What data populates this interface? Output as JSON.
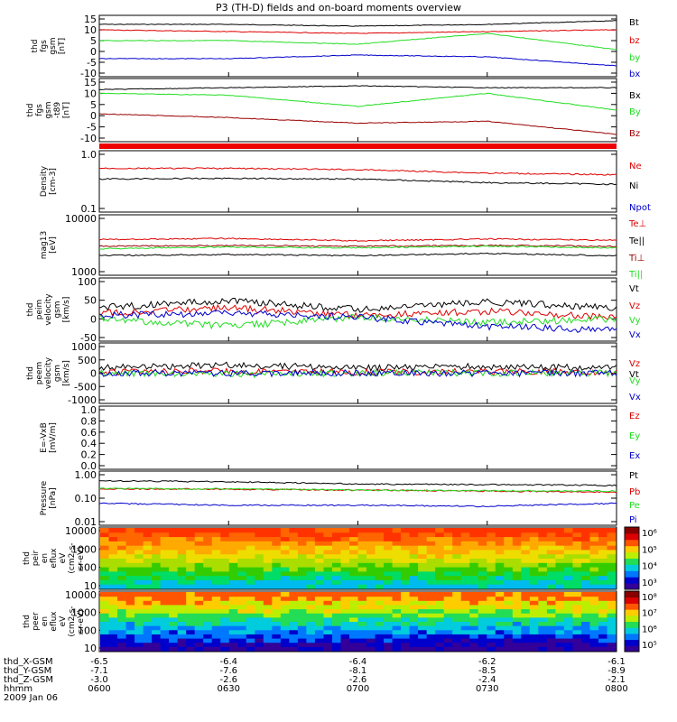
{
  "title": "P3 (TH-D) fields and on-board moments overview",
  "colors": {
    "black": "#000000",
    "red": "#dd0000",
    "green": "#22dd22",
    "blue": "#0000cc",
    "brown": "#990000",
    "purple": "#9900aa"
  },
  "chart_data": [
    {
      "type": "line",
      "id": "fgs_gsm",
      "ylabel_lines": [
        "thd",
        "fgs",
        "gsm",
        "[nT]"
      ],
      "ylim": [
        -15,
        15
      ],
      "yticks": [
        "15",
        "10",
        "5",
        "0",
        "-5",
        "-10"
      ],
      "series": [
        {
          "name": "Bt",
          "color": "red-black",
          "label": "Bt",
          "x": [
            "0600",
            "0630",
            "0700",
            "0730",
            "0800"
          ],
          "values": [
            12,
            12,
            11,
            12,
            14
          ]
        },
        {
          "name": "bz",
          "label": "bz",
          "x": [
            "0600",
            "0630",
            "0700",
            "0730",
            "0800"
          ],
          "values": [
            9,
            8,
            7,
            8,
            9
          ]
        },
        {
          "name": "by",
          "label": "by",
          "x": [
            "0600",
            "0630",
            "0700",
            "0730",
            "0800"
          ],
          "values": [
            3,
            3,
            1,
            7,
            -2
          ]
        },
        {
          "name": "bx",
          "label": "bx",
          "x": [
            "0600",
            "0630",
            "0700",
            "0730",
            "0800"
          ],
          "values": [
            -7,
            -7,
            -5,
            -6,
            -11
          ]
        }
      ]
    },
    {
      "type": "line",
      "id": "fgs_gsm_t89",
      "ylabel_lines": [
        "thd",
        "fgs",
        "gsm",
        "-t89",
        "[nT]"
      ],
      "ylim": [
        -15,
        15
      ],
      "yticks": [
        "15",
        "10",
        "5",
        "0",
        "-5",
        "-10"
      ],
      "series": [
        {
          "name": "Bx",
          "label": "Bx",
          "x": [
            "0600",
            "0630",
            "0700",
            "0730",
            "0800"
          ],
          "values": [
            11,
            12,
            13,
            12,
            12
          ]
        },
        {
          "name": "By",
          "label": "By",
          "x": [
            "0600",
            "0630",
            "0700",
            "0730",
            "0800"
          ],
          "values": [
            9,
            8,
            2,
            9,
            0
          ]
        },
        {
          "name": "Bz",
          "label": "Bz",
          "x": [
            "0600",
            "0630",
            "0700",
            "0730",
            "0800"
          ],
          "values": [
            -2,
            -4,
            -7,
            -6,
            -13
          ]
        }
      ]
    },
    {
      "type": "line",
      "id": "density",
      "ylabel_lines": [
        "Density",
        "[cm-3]"
      ],
      "ylim": [
        0.1,
        1.0
      ],
      "log": true,
      "yticks": [
        "1.0",
        "0.1"
      ],
      "series": [
        {
          "name": "Ne",
          "label": "Ne",
          "x": [
            "0600",
            "0630",
            "0700",
            "0730",
            "0800"
          ],
          "values": [
            0.55,
            0.55,
            0.52,
            0.45,
            0.42
          ]
        },
        {
          "name": "Ni",
          "label": "Ni",
          "x": [
            "0600",
            "0630",
            "0700",
            "0730",
            "0800"
          ],
          "values": [
            0.35,
            0.36,
            0.35,
            0.3,
            0.28
          ]
        },
        {
          "name": "Npot",
          "label": "Npot",
          "x": [],
          "values": []
        }
      ]
    },
    {
      "type": "line",
      "id": "temperature",
      "ylabel_lines": [
        "mag13",
        "[eV]"
      ],
      "ylim": [
        1000,
        10000
      ],
      "log": true,
      "yticks": [
        "10000",
        "1000"
      ],
      "series": [
        {
          "name": "Te⊥",
          "label": "Te⊥",
          "x": [
            "0600",
            "0630",
            "0700",
            "0730",
            "0800"
          ],
          "values": [
            4000,
            4200,
            3800,
            4100,
            3900
          ]
        },
        {
          "name": "Te||",
          "label": "Te||",
          "x": [
            "0600",
            "0630",
            "0700",
            "0730",
            "0800"
          ],
          "values": [
            2000,
            2100,
            2000,
            2200,
            2000
          ]
        },
        {
          "name": "Ti⊥",
          "label": "Ti⊥",
          "x": [
            "0600",
            "0630",
            "0700",
            "0730",
            "0800"
          ],
          "values": [
            3000,
            3100,
            3000,
            3100,
            3000
          ]
        },
        {
          "name": "Ti||",
          "label": "Ti||",
          "x": [
            "0600",
            "0630",
            "0700",
            "0730",
            "0800"
          ],
          "values": [
            2700,
            2900,
            2800,
            3000,
            2800
          ]
        }
      ]
    },
    {
      "type": "line",
      "id": "peim_velocity",
      "ylabel_lines": [
        "thd",
        "peim",
        "velocity",
        "gsm",
        "[km/s]"
      ],
      "ylim": [
        -50,
        100
      ],
      "yticks": [
        "100",
        "50",
        "0",
        "-50"
      ],
      "series": [
        {
          "name": "Vt",
          "label": "Vt",
          "x": [
            "0600",
            "0630",
            "0700",
            "0730",
            "0800"
          ],
          "values": [
            30,
            50,
            25,
            45,
            30
          ]
        },
        {
          "name": "Vz",
          "label": "Vz",
          "x": [
            "0600",
            "0630",
            "0700",
            "0730",
            "0800"
          ],
          "values": [
            15,
            30,
            10,
            20,
            5
          ]
        },
        {
          "name": "Vy",
          "label": "Vy",
          "x": [
            "0600",
            "0630",
            "0700",
            "0730",
            "0800"
          ],
          "values": [
            0,
            -20,
            5,
            -10,
            0
          ]
        },
        {
          "name": "Vx",
          "label": "Vx",
          "x": [
            "0600",
            "0630",
            "0700",
            "0730",
            "0800"
          ],
          "values": [
            10,
            15,
            5,
            -20,
            -30
          ]
        }
      ]
    },
    {
      "type": "line",
      "id": "peem_velocity",
      "ylabel_lines": [
        "thd",
        "peem",
        "velocity",
        "gsm",
        "[km/s]"
      ],
      "ylim": [
        -1000,
        1000
      ],
      "yticks": [
        "1000",
        "500",
        "0",
        "-500",
        "-1000"
      ],
      "series": [
        {
          "name": "Vt",
          "label": "Vt",
          "x": [
            "0600",
            "0630",
            "0700",
            "0730",
            "0800"
          ],
          "values": [
            200,
            300,
            200,
            250,
            200
          ]
        },
        {
          "name": "Vz",
          "label": "Vz",
          "x": [
            "0600",
            "0630",
            "0700",
            "0730",
            "0800"
          ],
          "values": [
            50,
            80,
            40,
            60,
            50
          ]
        },
        {
          "name": "Vy",
          "label": "Vy",
          "x": [
            "0600",
            "0630",
            "0700",
            "0730",
            "0800"
          ],
          "values": [
            0,
            -50,
            10,
            0,
            0
          ]
        },
        {
          "name": "Vx",
          "label": "Vx",
          "x": [
            "0600",
            "0630",
            "0700",
            "0730",
            "0800"
          ],
          "values": [
            0,
            0,
            0,
            0,
            0
          ]
        }
      ]
    },
    {
      "type": "line",
      "id": "efield",
      "ylabel_lines": [
        "E=-VxB",
        "[mV/m]"
      ],
      "ylim": [
        -1.0,
        1.0
      ],
      "yticks": [
        "1.0",
        "0.8",
        "0.6",
        "0.4",
        "0.2",
        "0.0"
      ],
      "series": [
        {
          "name": "Ez",
          "label": "Ez",
          "x": [],
          "values": []
        },
        {
          "name": "Ey",
          "label": "Ey",
          "x": [],
          "values": []
        },
        {
          "name": "Ex",
          "label": "Ex",
          "x": [],
          "values": []
        }
      ]
    },
    {
      "type": "line",
      "id": "pressure",
      "ylabel_lines": [
        "Pressure",
        "[nPa]"
      ],
      "ylim": [
        0.01,
        1.0
      ],
      "log": true,
      "yticks": [
        "1.00",
        "0.10",
        "0.01"
      ],
      "series": [
        {
          "name": "Pt",
          "label": "Pt",
          "x": [
            "0600",
            "0630",
            "0700",
            "0730",
            "0800"
          ],
          "values": [
            0.55,
            0.5,
            0.4,
            0.38,
            0.35
          ]
        },
        {
          "name": "Pb",
          "label": "Pb",
          "x": [
            "0600",
            "0630",
            "0700",
            "0730",
            "0800"
          ],
          "values": [
            0.25,
            0.24,
            0.22,
            0.2,
            0.18
          ]
        },
        {
          "name": "Pe",
          "label": "Pe",
          "x": [
            "0600",
            "0630",
            "0700",
            "0730",
            "0800"
          ],
          "values": [
            0.26,
            0.25,
            0.22,
            0.21,
            0.2
          ]
        },
        {
          "name": "Pi",
          "label": "Pi",
          "x": [
            "0600",
            "0630",
            "0700",
            "0730",
            "0800"
          ],
          "values": [
            0.06,
            0.05,
            0.05,
            0.045,
            0.06
          ]
        }
      ]
    },
    {
      "type": "heatmap",
      "id": "peir_eflux",
      "ylabel_lines": [
        "thd",
        "peir",
        "en",
        "eflux",
        "eV",
        "(cm2-s-",
        "sr-eV)"
      ],
      "ylim": [
        10,
        10000
      ],
      "log": true,
      "yticks": [
        "10000",
        "1000",
        "100",
        "10"
      ],
      "colorbar_ticks": [
        "10⁶",
        "10⁵",
        "10⁴",
        "10³"
      ]
    },
    {
      "type": "heatmap",
      "id": "peer_eflux",
      "ylabel_lines": [
        "thd",
        "peer",
        "en",
        "eflux",
        "eV",
        "(cm2-s-",
        "sr-eV)"
      ],
      "ylim": [
        10,
        10000
      ],
      "log": true,
      "yticks": [
        "10000",
        "1000",
        "100",
        "10"
      ],
      "colorbar_ticks": [
        "10⁸",
        "10⁷",
        "10⁶",
        "10⁵"
      ]
    }
  ],
  "x_axis": {
    "ticks": [
      "0600",
      "0630",
      "0700",
      "0730",
      "0800"
    ],
    "rows": [
      {
        "label": "thd_X-GSM",
        "values": [
          "-6.5",
          "-6.4",
          "-6.4",
          "-6.2",
          "-6.1"
        ]
      },
      {
        "label": "thd_Y-GSM",
        "values": [
          "-7.1",
          "-7.6",
          "-8.1",
          "-8.5",
          "-8.9"
        ]
      },
      {
        "label": "thd_Z-GSM",
        "values": [
          "-3.0",
          "-2.6",
          "-2.6",
          "-2.4",
          "-2.1"
        ]
      },
      {
        "label": "hhmm",
        "values": [
          "0600",
          "0630",
          "0700",
          "0730",
          "0800"
        ]
      }
    ],
    "date": "2009 Jan 06"
  }
}
